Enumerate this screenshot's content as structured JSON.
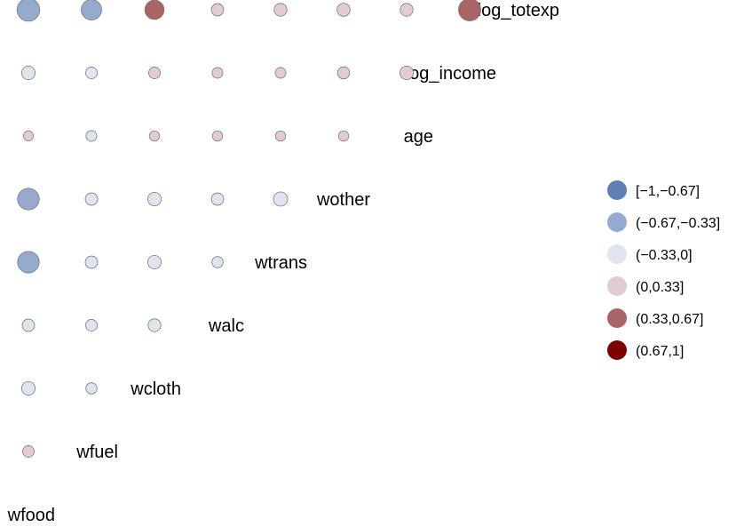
{
  "chart_data": {
    "type": "correlation-matrix",
    "variables": [
      "wfood",
      "wfuel",
      "wcloth",
      "walc",
      "wtrans",
      "wother",
      "age",
      "log_income",
      "log_totexp"
    ],
    "correlations": [
      {
        "row": "wfuel",
        "col": "wfood",
        "value": 0.12
      },
      {
        "row": "wcloth",
        "col": "wfood",
        "value": -0.2
      },
      {
        "row": "wcloth",
        "col": "wfuel",
        "value": -0.1
      },
      {
        "row": "walc",
        "col": "wfood",
        "value": -0.15
      },
      {
        "row": "walc",
        "col": "wfuel",
        "value": -0.12
      },
      {
        "row": "walc",
        "col": "wcloth",
        "value": -0.17
      },
      {
        "row": "wtrans",
        "col": "wfood",
        "value": -0.55
      },
      {
        "row": "wtrans",
        "col": "wfuel",
        "value": -0.15
      },
      {
        "row": "wtrans",
        "col": "wcloth",
        "value": -0.2
      },
      {
        "row": "wtrans",
        "col": "walc",
        "value": -0.1
      },
      {
        "row": "wother",
        "col": "wfood",
        "value": -0.55
      },
      {
        "row": "wother",
        "col": "wfuel",
        "value": -0.15
      },
      {
        "row": "wother",
        "col": "wcloth",
        "value": -0.2
      },
      {
        "row": "wother",
        "col": "walc",
        "value": -0.15
      },
      {
        "row": "wother",
        "col": "wtrans",
        "value": -0.23
      },
      {
        "row": "age",
        "col": "wfood",
        "value": 0.05
      },
      {
        "row": "age",
        "col": "wfuel",
        "value": -0.08
      },
      {
        "row": "age",
        "col": "wcloth",
        "value": 0.06
      },
      {
        "row": "age",
        "col": "walc",
        "value": 0.06
      },
      {
        "row": "age",
        "col": "wtrans",
        "value": 0.06
      },
      {
        "row": "age",
        "col": "wother",
        "value": 0.06
      },
      {
        "row": "log_income",
        "col": "wfood",
        "value": -0.2
      },
      {
        "row": "log_income",
        "col": "wfuel",
        "value": -0.12
      },
      {
        "row": "log_income",
        "col": "wcloth",
        "value": 0.12
      },
      {
        "row": "log_income",
        "col": "walc",
        "value": 0.08
      },
      {
        "row": "log_income",
        "col": "wtrans",
        "value": 0.08
      },
      {
        "row": "log_income",
        "col": "wother",
        "value": 0.14
      },
      {
        "row": "log_income",
        "col": "age",
        "value": 0.2
      },
      {
        "row": "log_totexp",
        "col": "wfood",
        "value": -0.6
      },
      {
        "row": "log_totexp",
        "col": "wfuel",
        "value": -0.5
      },
      {
        "row": "log_totexp",
        "col": "wcloth",
        "value": 0.45
      },
      {
        "row": "log_totexp",
        "col": "walc",
        "value": 0.15
      },
      {
        "row": "log_totexp",
        "col": "wtrans",
        "value": 0.17
      },
      {
        "row": "log_totexp",
        "col": "wother",
        "value": 0.18
      },
      {
        "row": "log_totexp",
        "col": "age",
        "value": 0.17
      },
      {
        "row": "log_totexp",
        "col": "log_income",
        "value": 0.58
      }
    ],
    "legend": {
      "position": "right",
      "bins": [
        {
          "label": "[−1,−0.67]",
          "color": "#5f7fb3"
        },
        {
          "label": "(−0.67,−0.33]",
          "color": "#96aad0"
        },
        {
          "label": "(−0.33,0]",
          "color": "#dfe5ef"
        },
        {
          "label": "(0,0.33]",
          "color": "#e2cccf"
        },
        {
          "label": "(0.33,0.67]",
          "color": "#a86466"
        },
        {
          "label": "(0.67,1]",
          "color": "#7d0000"
        }
      ]
    },
    "title": "",
    "grid": false
  }
}
